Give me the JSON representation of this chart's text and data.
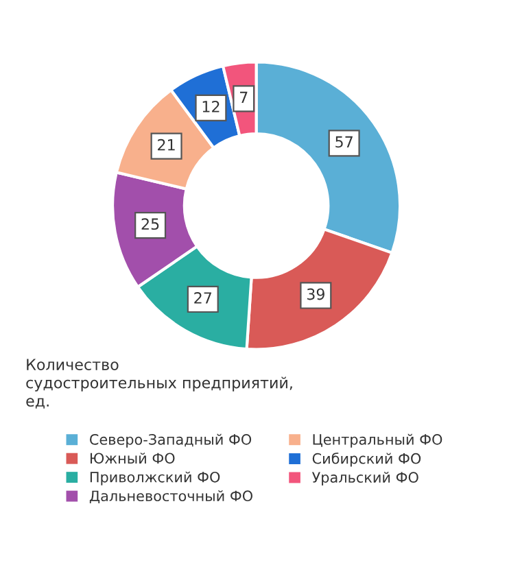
{
  "chart_data": {
    "type": "donut",
    "title": "Количество\nсудостроительных предприятий,\nед.",
    "categories": [
      "Северо-Западный ФО",
      "Южный ФО",
      "Приволжский ФО",
      "Дальневосточный ФО",
      "Центральный ФО",
      "Сибирский ФО",
      "Уральский ФО"
    ],
    "values": [
      57,
      39,
      27,
      25,
      21,
      12,
      7
    ],
    "colors": [
      "#5aafd6",
      "#d95a57",
      "#2aaea2",
      "#a24fab",
      "#f8b08c",
      "#1f6fd6",
      "#f2557c"
    ],
    "data_labels": true,
    "legend": "bottom"
  }
}
